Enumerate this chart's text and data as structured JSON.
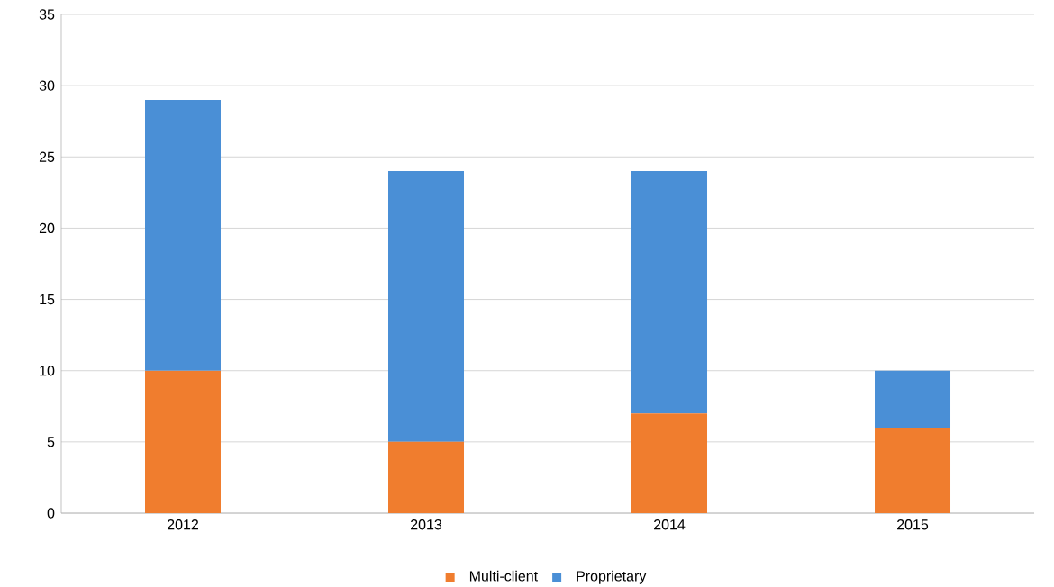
{
  "chart_data": {
    "type": "bar",
    "stacked": true,
    "categories": [
      "2012",
      "2013",
      "2014",
      "2015"
    ],
    "series": [
      {
        "name": "Multi-client",
        "color": "#f07d2e",
        "values": [
          10,
          5,
          7,
          6
        ]
      },
      {
        "name": "Proprietary",
        "color": "#4a8fd6",
        "values": [
          19,
          19,
          17,
          4
        ]
      }
    ],
    "ylim": [
      0,
      35
    ],
    "yticks": [
      0,
      5,
      10,
      15,
      20,
      25,
      30,
      35
    ],
    "grid": "y",
    "legend": "bottom"
  }
}
